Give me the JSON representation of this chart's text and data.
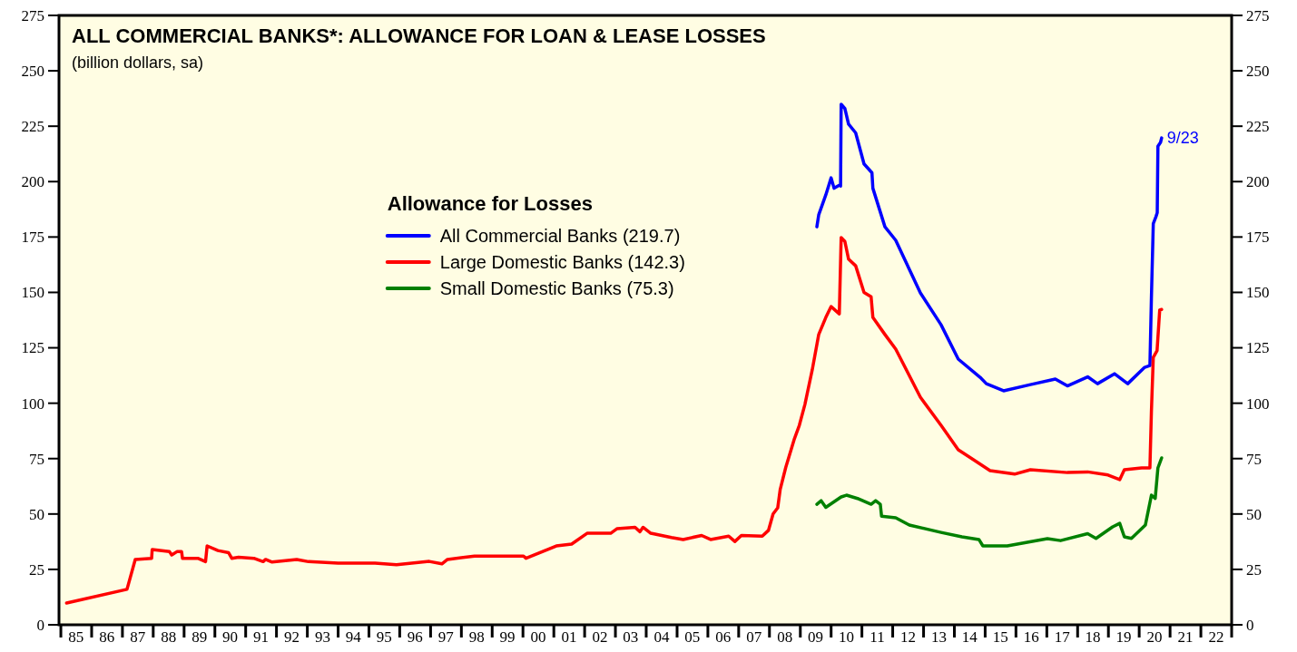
{
  "chart_data": {
    "type": "line",
    "title": "ALL COMMERCIAL BANKS*: ALLOWANCE FOR LOAN & LEASE LOSSES",
    "subtitle": "(billion dollars, sa)",
    "legend_title": "Allowance for Losses",
    "legend": "top left",
    "xlim": [
      "1984-12-10",
      "2023-01-01"
    ],
    "ylim": [
      0,
      275
    ],
    "yticks": [
      0,
      25,
      50,
      75,
      100,
      125,
      150,
      175,
      200,
      225,
      250,
      275
    ],
    "y2lim": [
      0,
      275
    ],
    "y2ticks": [
      0,
      25,
      50,
      75,
      100,
      125,
      150,
      175,
      200,
      225,
      250,
      275
    ],
    "xticks": [
      {
        "value": "1985-01",
        "label": null
      },
      {
        "value": "1985-07",
        "label": "85"
      },
      {
        "value": "1986-01",
        "label": null
      },
      {
        "value": "1986-07",
        "label": "86"
      },
      {
        "value": "1987-01",
        "label": null
      },
      {
        "value": "1987-07",
        "label": "87"
      },
      {
        "value": "1988-01",
        "label": null
      },
      {
        "value": "1988-07",
        "label": "88"
      },
      {
        "value": "1989-01",
        "label": null
      },
      {
        "value": "1989-07",
        "label": "89"
      },
      {
        "value": "1990-01",
        "label": null
      },
      {
        "value": "1990-07",
        "label": "90"
      },
      {
        "value": "1991-01",
        "label": null
      },
      {
        "value": "1991-07",
        "label": "91"
      },
      {
        "value": "1992-01",
        "label": null
      },
      {
        "value": "1992-07",
        "label": "92"
      },
      {
        "value": "1993-01",
        "label": null
      },
      {
        "value": "1993-07",
        "label": "93"
      },
      {
        "value": "1994-01",
        "label": null
      },
      {
        "value": "1994-07",
        "label": "94"
      },
      {
        "value": "1995-01",
        "label": null
      },
      {
        "value": "1995-07",
        "label": "95"
      },
      {
        "value": "1996-01",
        "label": null
      },
      {
        "value": "1996-07",
        "label": "96"
      },
      {
        "value": "1997-01",
        "label": null
      },
      {
        "value": "1997-07",
        "label": "97"
      },
      {
        "value": "1998-01",
        "label": null
      },
      {
        "value": "1998-07",
        "label": "98"
      },
      {
        "value": "1999-01",
        "label": null
      },
      {
        "value": "1999-07",
        "label": "99"
      },
      {
        "value": "2000-01",
        "label": null
      },
      {
        "value": "2000-07",
        "label": "00"
      },
      {
        "value": "2001-01",
        "label": null
      },
      {
        "value": "2001-07",
        "label": "01"
      },
      {
        "value": "2002-01",
        "label": null
      },
      {
        "value": "2002-07",
        "label": "02"
      },
      {
        "value": "2003-01",
        "label": null
      },
      {
        "value": "2003-07",
        "label": "03"
      },
      {
        "value": "2004-01",
        "label": null
      },
      {
        "value": "2004-07",
        "label": "04"
      },
      {
        "value": "2005-01",
        "label": null
      },
      {
        "value": "2005-07",
        "label": "05"
      },
      {
        "value": "2006-01",
        "label": null
      },
      {
        "value": "2006-07",
        "label": "06"
      },
      {
        "value": "2007-01",
        "label": null
      },
      {
        "value": "2007-07",
        "label": "07"
      },
      {
        "value": "2008-01",
        "label": null
      },
      {
        "value": "2008-07",
        "label": "08"
      },
      {
        "value": "2009-01",
        "label": null
      },
      {
        "value": "2009-07",
        "label": "09"
      },
      {
        "value": "2010-01",
        "label": null
      },
      {
        "value": "2010-07",
        "label": "10"
      },
      {
        "value": "2011-01",
        "label": null
      },
      {
        "value": "2011-07",
        "label": "11"
      },
      {
        "value": "2012-01",
        "label": null
      },
      {
        "value": "2012-07",
        "label": "12"
      },
      {
        "value": "2013-01",
        "label": null
      },
      {
        "value": "2013-07",
        "label": "13"
      },
      {
        "value": "2014-01",
        "label": null
      },
      {
        "value": "2014-07",
        "label": "14"
      },
      {
        "value": "2015-01",
        "label": null
      },
      {
        "value": "2015-07",
        "label": "15"
      },
      {
        "value": "2016-01",
        "label": null
      },
      {
        "value": "2016-07",
        "label": "16"
      },
      {
        "value": "2017-01",
        "label": null
      },
      {
        "value": "2017-07",
        "label": "17"
      },
      {
        "value": "2018-01",
        "label": null
      },
      {
        "value": "2018-07",
        "label": "18"
      },
      {
        "value": "2019-01",
        "label": null
      },
      {
        "value": "2019-07",
        "label": "19"
      },
      {
        "value": "2020-01",
        "label": null
      },
      {
        "value": "2020-07",
        "label": "20"
      },
      {
        "value": "2021-01",
        "label": null
      },
      {
        "value": "2021-07",
        "label": "21"
      },
      {
        "value": "2022-01",
        "label": null
      },
      {
        "value": "2022-07",
        "label": "22"
      },
      {
        "value": "2023-01",
        "label": null
      }
    ],
    "annotations": [
      {
        "text": "9/23",
        "x": "2020-09-23",
        "y": 219.7
      }
    ],
    "series": [
      {
        "name": "All Commercial Banks (219.7)",
        "color": "#0000ff",
        "x": [
          "2009-07-16",
          "2009-08-07",
          "2009-10-30",
          "2010-01-01",
          "2010-02-05",
          "2010-04-08",
          "2010-04-23",
          "2010-04-30",
          "2010-06-13",
          "2010-07-27",
          "2010-10-19",
          "2011-01-26",
          "2011-04-30",
          "2011-05-11",
          "2011-10-01",
          "2012-02-06",
          "2012-11-24",
          "2013-07-27",
          "2014-02-16",
          "2014-11-02",
          "2015-01-15",
          "2015-08-07",
          "2016-06-21",
          "2017-04-12",
          "2017-09-02",
          "2018-04-30",
          "2018-08-25",
          "2019-03-14",
          "2019-08-18",
          "2020-03-06",
          "2020-05-07",
          "2020-05-25",
          "2020-06-16",
          "2020-07-19",
          "2020-08-02",
          "2020-08-10",
          "2020-09-10",
          "2020-09-23"
        ],
        "values": [
          179.6,
          185,
          194,
          201.7,
          197,
          198.4,
          198,
          234.9,
          233,
          225.9,
          222,
          208,
          204,
          197,
          179.6,
          173.5,
          149.8,
          135.4,
          119.9,
          111.7,
          108.8,
          105.6,
          108.4,
          110.9,
          107.8,
          111.9,
          108.8,
          113.3,
          108.8,
          116.2,
          117,
          148,
          181,
          184.3,
          186,
          216,
          217.7,
          219.7
        ]
      },
      {
        "name": "Large Domestic Banks (142.3)",
        "color": "#ff0000",
        "x": [
          "1985-03-10",
          "1987-02-24",
          "1987-06-02",
          "1987-12-13",
          "1987-12-20",
          "1988-07-12",
          "1988-08-07",
          "1988-10-08",
          "1988-12-02",
          "1988-12-13",
          "1989-06-13",
          "1989-09-12",
          "1989-10-01",
          "1990-02-06",
          "1990-06-13",
          "1990-07-20",
          "1990-10-08",
          "1991-04-08",
          "1991-07-27",
          "1991-08-25",
          "1991-11-10",
          "1992-08-28",
          "1993-01-15",
          "1994-01-01",
          "1995-03-14",
          "1995-11-24",
          "1996-12-16",
          "1997-05-15",
          "1997-07-20",
          "1998-06-06",
          "2000-01-08",
          "2000-02-06",
          "2001-01-30",
          "2001-07-31",
          "2002-01-30",
          "2002-11-06",
          "2003-01-22",
          "2003-08-22",
          "2003-10-19",
          "2003-11-24",
          "2004-02-24",
          "2004-10-26",
          "2005-03-14",
          "2005-10-19",
          "2006-02-02",
          "2006-09-05",
          "2006-11-17",
          "2007-02-02",
          "2007-10-08",
          "2007-12-20",
          "2008-02-13",
          "2008-04-08",
          "2008-05-07",
          "2008-07-12",
          "2008-10-19",
          "2008-12-20",
          "2009-02-24",
          "2009-05-22",
          "2009-08-07",
          "2009-10-30",
          "2010-01-01",
          "2010-04-08",
          "2010-04-30",
          "2010-06-13",
          "2010-07-27",
          "2010-10-19",
          "2011-01-26",
          "2011-04-20",
          "2011-05-11",
          "2011-10-01",
          "2012-02-06",
          "2012-11-24",
          "2013-07-27",
          "2014-02-16",
          "2015-02-28",
          "2015-12-16",
          "2016-06-21",
          "2017-09-02",
          "2018-04-30",
          "2018-12-27",
          "2019-05-15",
          "2019-07-09",
          "2020-01-30",
          "2020-05-07",
          "2020-05-25",
          "2020-06-16",
          "2020-07-31",
          "2020-08-31",
          "2020-09-23"
        ],
        "values": [
          9.8,
          16,
          29.5,
          30,
          34,
          33,
          31.5,
          33,
          33,
          30,
          30,
          28.5,
          35.6,
          33.5,
          32.5,
          30,
          30.5,
          30,
          28.5,
          29.5,
          28.3,
          29.5,
          28.5,
          27.8,
          27.8,
          27.1,
          28.6,
          27.5,
          29.5,
          31,
          31,
          30,
          35.6,
          36.4,
          41.3,
          41.3,
          43.4,
          44,
          42,
          44,
          41.3,
          39.4,
          38.5,
          40.3,
          38.5,
          40,
          37.6,
          40.3,
          40,
          42.6,
          50,
          52.8,
          61,
          71,
          83.5,
          90,
          99.4,
          115,
          131,
          138.7,
          143.6,
          140.3,
          174.7,
          173,
          165,
          162,
          150,
          148,
          138.7,
          131,
          124.4,
          102.7,
          90,
          79,
          69.6,
          68,
          70,
          68.7,
          69,
          67.6,
          65.5,
          70,
          70.8,
          70.8,
          96.6,
          120.7,
          123.7,
          142,
          142.3
        ]
      },
      {
        "name": "Small Domestic Banks (75.3)",
        "color": "#008000",
        "x": [
          "2009-07-16",
          "2009-09-05",
          "2009-10-30",
          "2010-04-30",
          "2010-07-02",
          "2010-11-10",
          "2011-04-20",
          "2011-06-13",
          "2011-08-07",
          "2011-08-22",
          "2012-02-06",
          "2012-07-16",
          "2013-07-27",
          "2014-04-01",
          "2014-10-19",
          "2014-12-05",
          "2015-09-20",
          "2017-01-08",
          "2017-06-13",
          "2018-04-30",
          "2018-08-07",
          "2019-02-20",
          "2019-05-15",
          "2019-07-09",
          "2019-10-01",
          "2020-03-14",
          "2020-05-25",
          "2020-07-09",
          "2020-08-10",
          "2020-09-23"
        ],
        "values": [
          54.4,
          56,
          53,
          57.7,
          58.5,
          57,
          54.4,
          56,
          54.4,
          49,
          48.3,
          45,
          41.7,
          39.7,
          38.5,
          35.6,
          35.6,
          38.9,
          38,
          41.1,
          39,
          44.2,
          45.8,
          39.7,
          39,
          45,
          58.5,
          57,
          70.8,
          75.3
        ]
      }
    ]
  }
}
